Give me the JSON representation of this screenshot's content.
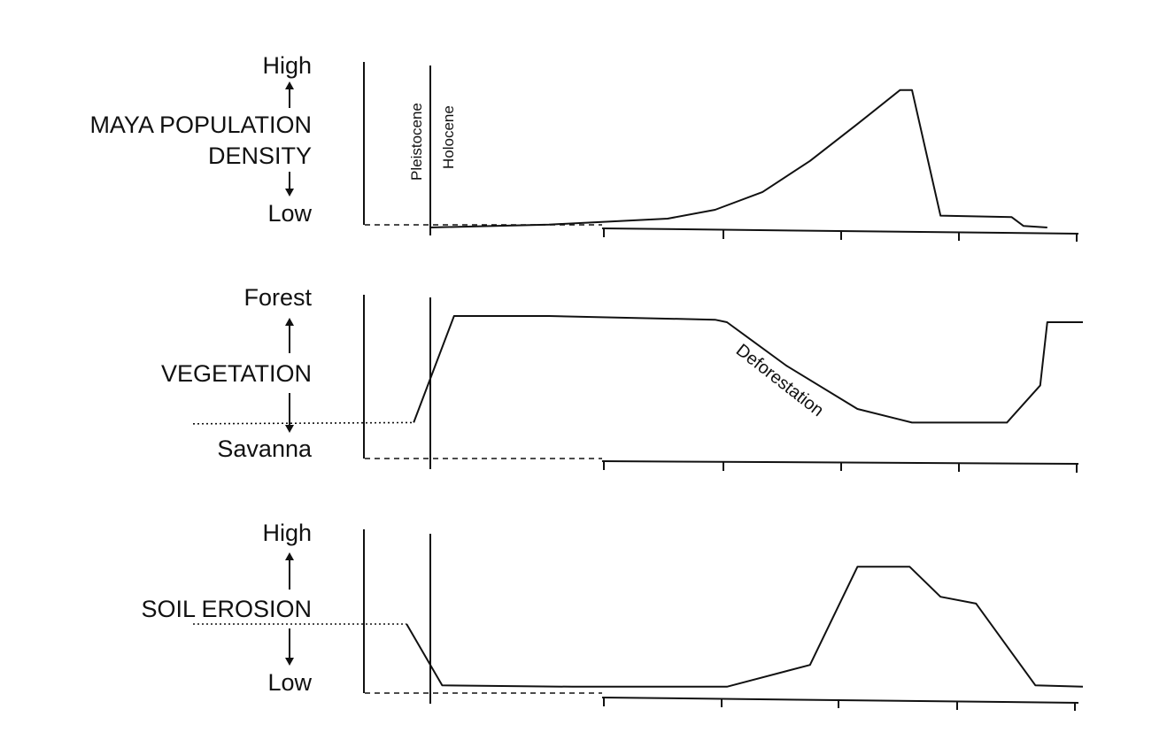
{
  "chart_data": [
    {
      "type": "line",
      "ylabel_lines": [
        "MAYA POPULATION",
        "DENSITY"
      ],
      "y_high": "High",
      "y_low": "Low",
      "era_labels": [
        "Pleistocene",
        "Holocene"
      ],
      "series": [
        {
          "values": [
            [
              0,
              0
            ],
            [
              0.5,
              0.02
            ],
            [
              1.0,
              0.06
            ],
            [
              1.2,
              0.12
            ],
            [
              1.4,
              0.24
            ],
            [
              1.6,
              0.45
            ],
            [
              1.8,
              0.7
            ],
            [
              1.98,
              0.93
            ],
            [
              2.03,
              0.93
            ],
            [
              2.15,
              0.08
            ],
            [
              2.45,
              0.07
            ],
            [
              2.5,
              0.01
            ],
            [
              2.6,
              0.0
            ]
          ]
        }
      ],
      "dashed_baseline": true
    },
    {
      "type": "line",
      "ylabel_lines": [
        "VEGETATION"
      ],
      "y_high": "Forest",
      "y_low": "Savanna",
      "annotation": "Deforestation",
      "series": [
        {
          "values": [
            [
              -1.0,
              0.13
            ],
            [
              -0.07,
              0.14
            ],
            [
              0.1,
              1.0
            ],
            [
              0.5,
              1.0
            ],
            [
              1.2,
              0.97
            ],
            [
              1.25,
              0.95
            ],
            [
              1.5,
              0.6
            ],
            [
              1.8,
              0.25
            ],
            [
              2.03,
              0.14
            ],
            [
              2.43,
              0.14
            ],
            [
              2.57,
              0.44
            ],
            [
              2.6,
              0.95
            ],
            [
              2.75,
              0.95
            ]
          ]
        }
      ],
      "dashed_baseline": true
    },
    {
      "type": "line",
      "ylabel_lines": [
        "SOIL EROSION"
      ],
      "y_high": "High",
      "y_low": "Low",
      "series": [
        {
          "values": [
            [
              -1.0,
              0.5
            ],
            [
              -0.1,
              0.5
            ],
            [
              0.05,
              0.05
            ],
            [
              0.6,
              0.04
            ],
            [
              1.25,
              0.04
            ],
            [
              1.6,
              0.2
            ],
            [
              1.8,
              0.92
            ],
            [
              2.02,
              0.92
            ],
            [
              2.15,
              0.7
            ],
            [
              2.3,
              0.65
            ],
            [
              2.55,
              0.05
            ],
            [
              2.75,
              0.04
            ]
          ]
        }
      ],
      "dashed_baseline": true
    }
  ]
}
